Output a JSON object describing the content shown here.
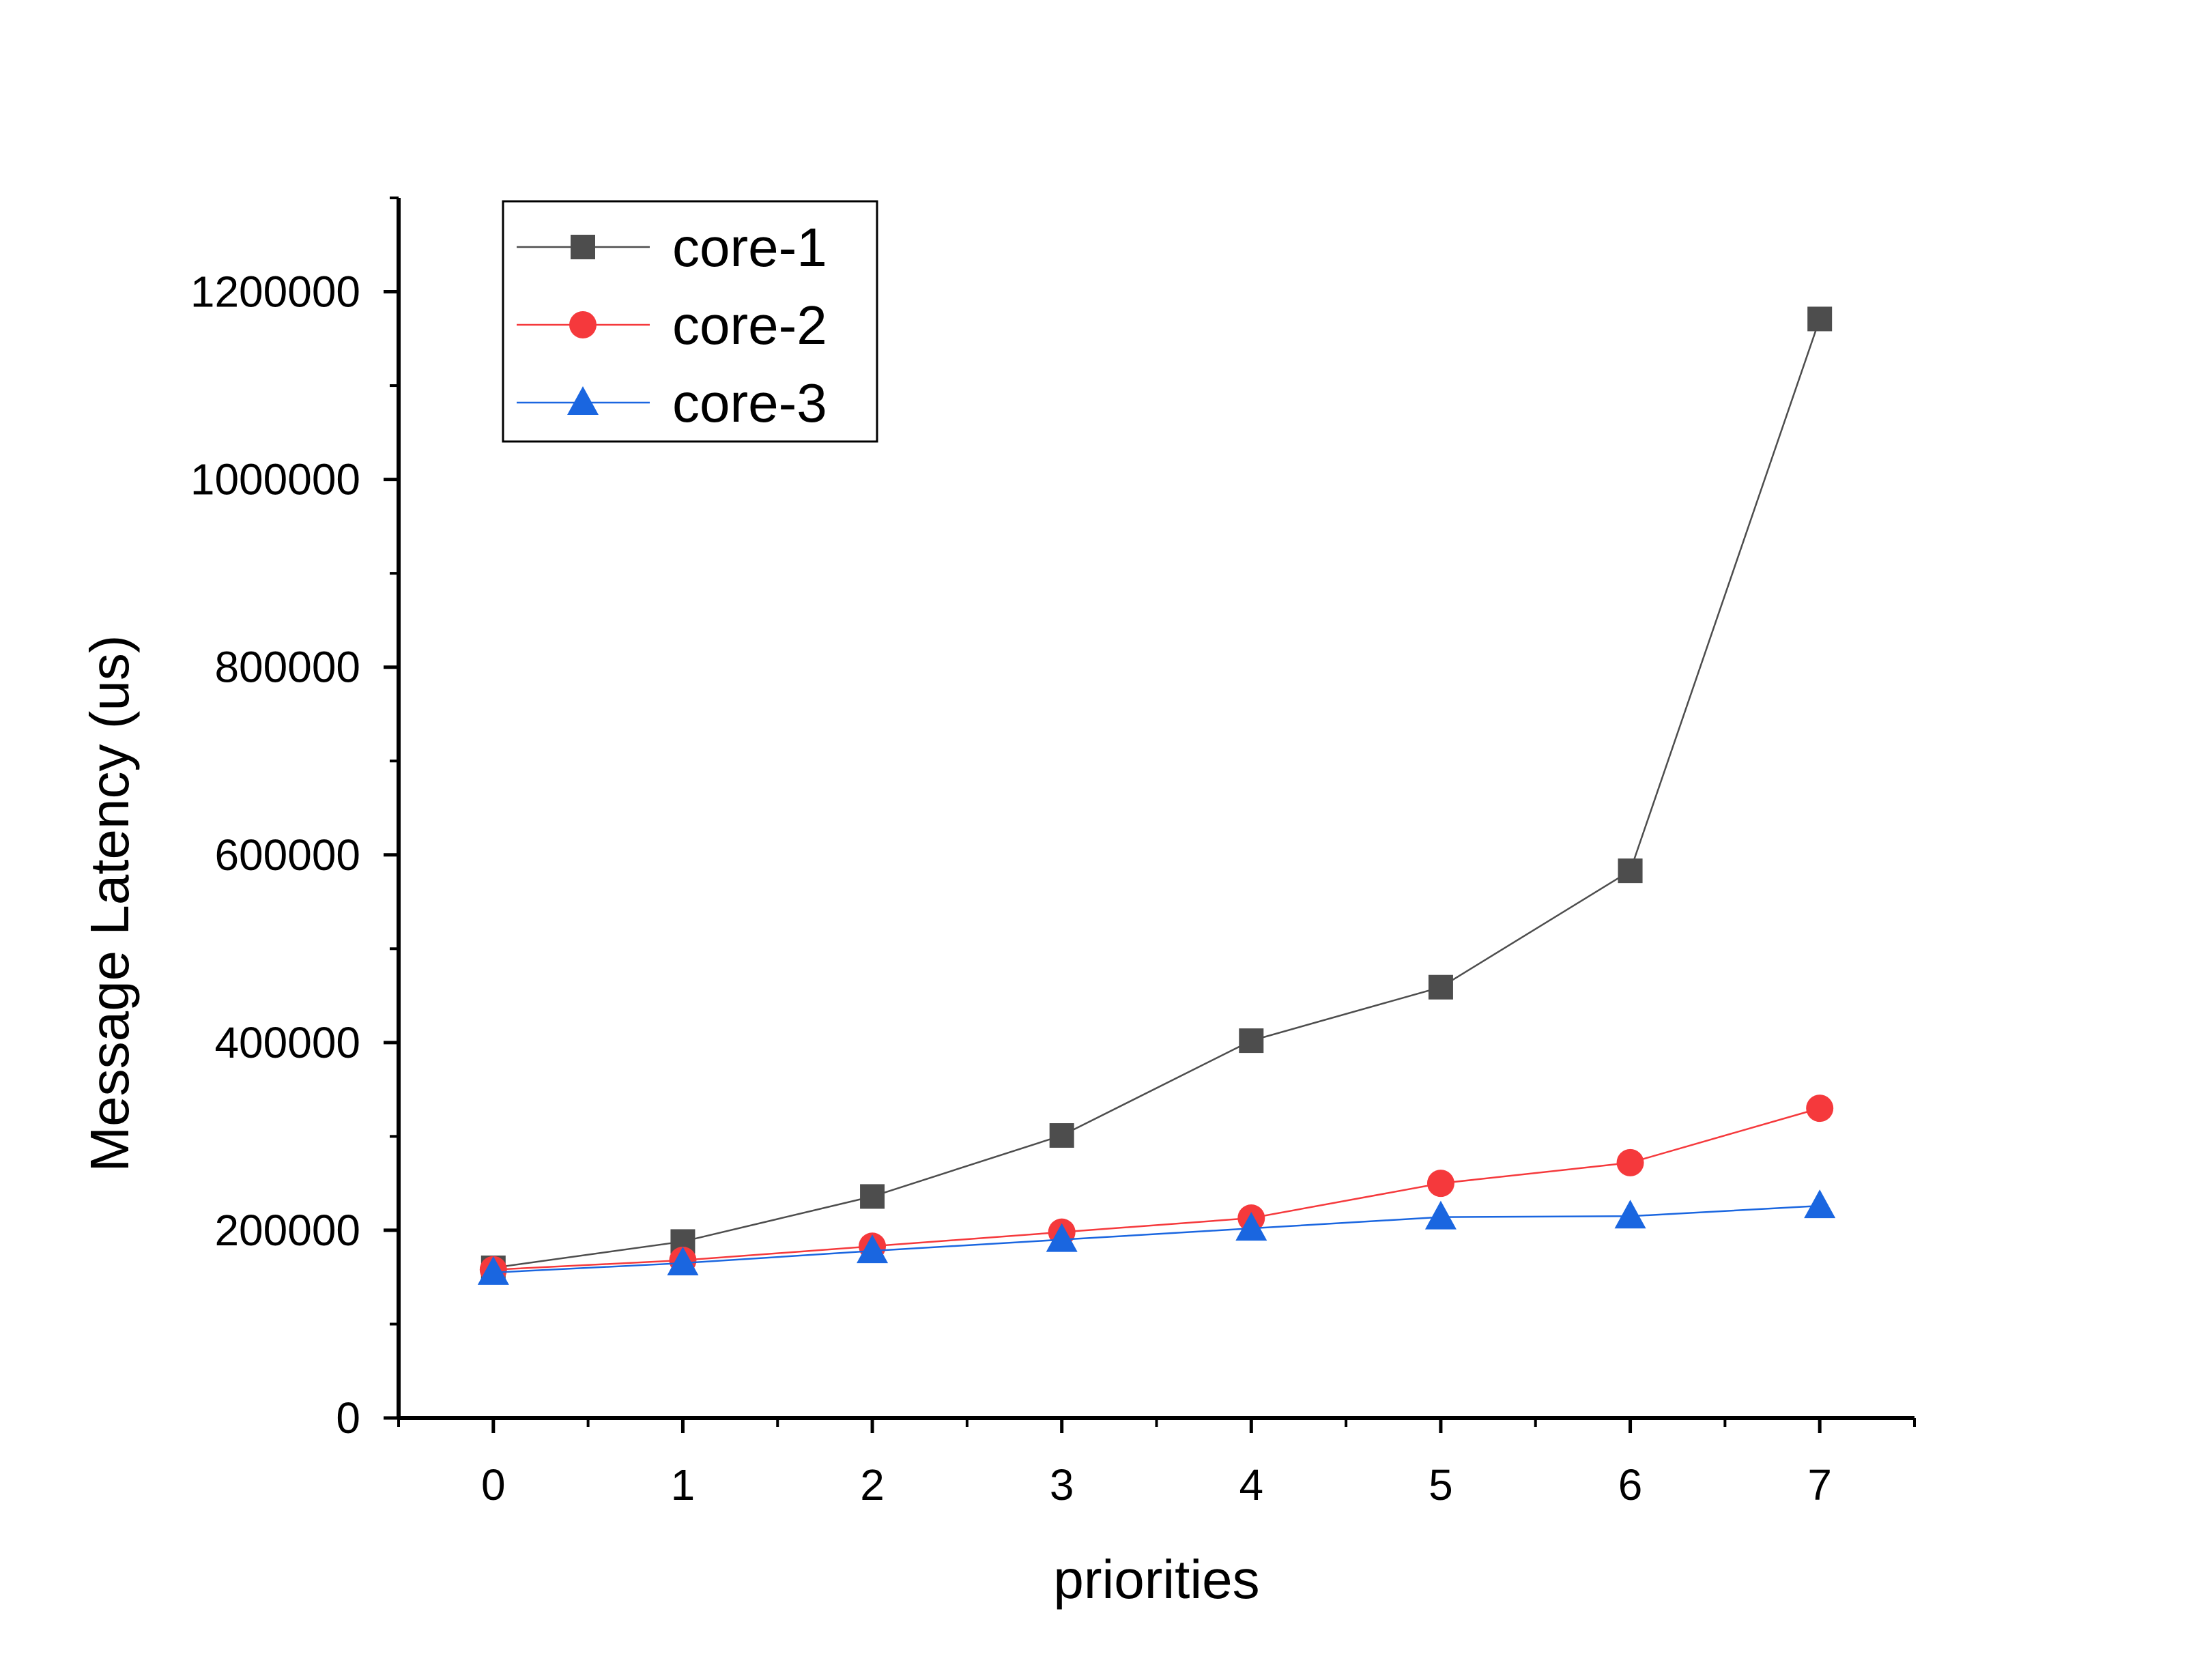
{
  "chart_data": {
    "type": "line",
    "title": "",
    "xlabel": "priorities",
    "ylabel": "Message Latency (us)",
    "x": [
      0,
      1,
      2,
      3,
      4,
      5,
      6,
      7
    ],
    "xlim": [
      -0.5,
      7.5
    ],
    "ylim": [
      0,
      1300000
    ],
    "xticks": [
      0,
      1,
      2,
      3,
      4,
      5,
      6,
      7
    ],
    "yticks": [
      0,
      200000,
      400000,
      600000,
      800000,
      1000000,
      1200000
    ],
    "grid": false,
    "legend_position": "top-left",
    "series": [
      {
        "name": "core-1",
        "marker": "square",
        "color": "#4d4d4d",
        "values": [
          160000,
          188000,
          236000,
          301000,
          402000,
          459000,
          583000,
          1171000
        ]
      },
      {
        "name": "core-2",
        "marker": "circle",
        "color": "#f5393c",
        "values": [
          158000,
          168000,
          183000,
          198000,
          213000,
          250000,
          272000,
          330000
        ]
      },
      {
        "name": "core-3",
        "marker": "triangle",
        "color": "#1a66e0",
        "values": [
          155000,
          165000,
          178000,
          190000,
          202000,
          214000,
          215000,
          226000
        ]
      }
    ]
  }
}
